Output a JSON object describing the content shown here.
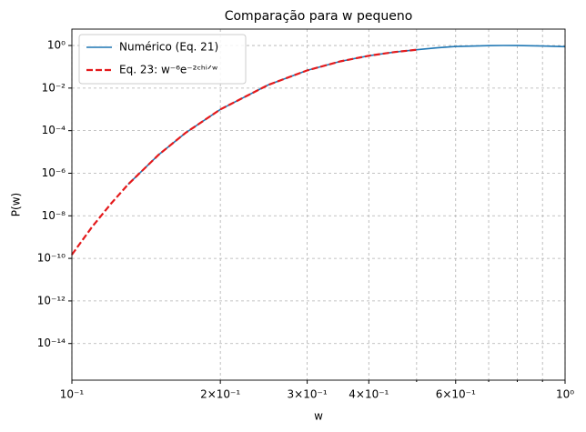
{
  "chart_data": {
    "type": "line",
    "title": "Comparação para w pequeno",
    "x_label": "w",
    "y_label": "P(w)",
    "log_x": true,
    "log_y": true,
    "grid": true,
    "legend": "upper left",
    "xlim": [
      0.1,
      1
    ],
    "ylim": [
      1.9e-16,
      5.9
    ],
    "xticks": [
      {
        "value": 0.1,
        "label": "10⁻¹"
      },
      {
        "value": 0.2,
        "label": "2×10⁻¹"
      },
      {
        "value": 0.3,
        "label": "3×10⁻¹"
      },
      {
        "value": 0.4,
        "label": "4×10⁻¹"
      },
      {
        "value": 0.6,
        "label": "6×10⁻¹"
      },
      {
        "value": 1,
        "label": "10⁰"
      }
    ],
    "xminor_ticks": [
      0.5,
      0.7,
      0.8,
      0.9
    ],
    "yticks": [
      {
        "value": 1,
        "label": "10⁰"
      },
      {
        "value": 0.01,
        "label": "10⁻²"
      },
      {
        "value": 0.0001,
        "label": "10⁻⁴"
      },
      {
        "value": 1e-06,
        "label": "10⁻⁶"
      },
      {
        "value": 1e-08,
        "label": "10⁻⁸"
      },
      {
        "value": 1e-10,
        "label": "10⁻¹⁰"
      },
      {
        "value": 1e-12,
        "label": "10⁻¹²"
      },
      {
        "value": 1e-14,
        "label": "10⁻¹⁴"
      }
    ],
    "series": [
      {
        "name": "Numérico (Eq. 21)",
        "color": "#1f77b4",
        "dash": false,
        "x": [
          0.13,
          0.15,
          0.17,
          0.2,
          0.25,
          0.3,
          0.35,
          0.4,
          0.45,
          0.5,
          0.55,
          0.6,
          0.7,
          0.75,
          0.8,
          0.9,
          1.0
        ],
        "values": [
          3e-07,
          7.4e-06,
          7.9e-05,
          0.001,
          0.014,
          0.068,
          0.18,
          0.33,
          0.49,
          0.63,
          0.78,
          0.9,
          0.98,
          1.0,
          0.99,
          0.95,
          0.88
        ]
      },
      {
        "name": "Eq. 23: w⁻⁶e⁻²ᶜʰⁱᐟʷ",
        "color": "#e41a1c",
        "dash": true,
        "x": [
          0.1,
          0.11,
          0.12,
          0.13,
          0.15,
          0.17,
          0.2,
          0.25,
          0.3,
          0.35,
          0.4,
          0.45,
          0.5
        ],
        "values": [
          1.5e-10,
          3.1e-09,
          3.7e-08,
          3e-07,
          7.4e-06,
          7.9e-05,
          0.001,
          0.014,
          0.068,
          0.18,
          0.33,
          0.49,
          0.63
        ]
      }
    ]
  }
}
